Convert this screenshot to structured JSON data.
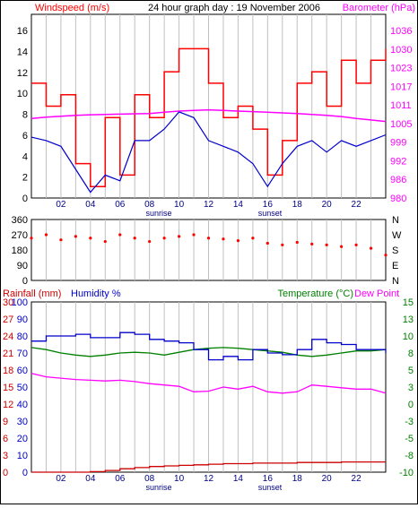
{
  "header": {
    "title": "24 hour graph day : 19 November 2006",
    "wind_label": "Windspeed (m/s)",
    "baro_label": "Barometer (hPa)"
  },
  "bottom_labels": {
    "rain_label": "Rainfall (mm)",
    "humidity_label": "Humidity %",
    "temp_label": "Temperature (°C)",
    "dew_label": "Dew Point"
  },
  "x_axis": {
    "ticks": [
      "02",
      "04",
      "06",
      "08",
      "10",
      "12",
      "14",
      "16",
      "18",
      "20",
      "22"
    ],
    "sunrise_label": "sunrise",
    "sunset_label": "sunset"
  },
  "colors": {
    "wind": "#ff0000",
    "gust": "#ff0000",
    "avg_wind": "#0000cc",
    "barometer": "#ff00ff",
    "direction": "#ff0000",
    "temperature": "#008000",
    "humidity": "#0000cc",
    "dew_point": "#ff00ff",
    "rainfall": "#cc0000",
    "grid": "#c0c0c0"
  },
  "chart_data": [
    {
      "type": "line",
      "name": "wind-barometer",
      "x": [
        0,
        1,
        2,
        3,
        4,
        5,
        6,
        7,
        8,
        9,
        10,
        11,
        12,
        13,
        14,
        15,
        16,
        17,
        18,
        19,
        20,
        21,
        22,
        23,
        24
      ],
      "y_left_ticks": [
        "0",
        "2",
        "4",
        "6",
        "8",
        "10",
        "12",
        "14",
        "16"
      ],
      "y_right_ticks": [
        "980",
        "986",
        "992",
        "999",
        "1005",
        "1011",
        "1017",
        "1023",
        "1030",
        "1036"
      ],
      "ylim_left": [
        0,
        16
      ],
      "ylim_right": [
        980,
        1040
      ],
      "series": [
        {
          "name": "Windspeed (m/s)",
          "axis": "left",
          "values": [
            10,
            8,
            9,
            3,
            1,
            7,
            2,
            9,
            7,
            11,
            13,
            13,
            10,
            7,
            8,
            6,
            2,
            5,
            10,
            11,
            8,
            12,
            10,
            12,
            13
          ]
        },
        {
          "axis": "left",
          "values": [
            5.3,
            5,
            4.5,
            2.5,
            0.5,
            2,
            1.5,
            5,
            5,
            6,
            7.5,
            7,
            5,
            4.5,
            4,
            3,
            1,
            3,
            4.5,
            5,
            4,
            5,
            4.5,
            5,
            5.5
          ]
        },
        {
          "name": "Barometer (hPa)",
          "axis": "right",
          "values": [
            1006,
            1006.4,
            1006.7,
            1007,
            1007.2,
            1007.3,
            1007.4,
            1007.5,
            1007.6,
            1008,
            1008.4,
            1008.6,
            1008.8,
            1008.6,
            1008.4,
            1008.2,
            1008,
            1007.8,
            1007.6,
            1007.3,
            1007,
            1006.6,
            1006,
            1005.5,
            1005
          ]
        }
      ]
    },
    {
      "type": "scatter",
      "name": "wind-direction",
      "x": [
        0,
        1,
        2,
        3,
        4,
        5,
        6,
        7,
        8,
        9,
        10,
        11,
        12,
        13,
        14,
        15,
        16,
        17,
        18,
        19,
        20,
        21,
        22,
        23,
        24
      ],
      "y_left_ticks": [
        "0",
        "90",
        "180",
        "270",
        "360"
      ],
      "y_right_ticks": [
        "N",
        "E",
        "S",
        "W",
        "N"
      ],
      "ylim": [
        0,
        360
      ],
      "series": [
        {
          "values": [
            250,
            270,
            240,
            260,
            250,
            230,
            270,
            250,
            230,
            250,
            260,
            270,
            250,
            245,
            235,
            250,
            220,
            210,
            225,
            215,
            210,
            200,
            210,
            190,
            150
          ]
        }
      ]
    },
    {
      "type": "line",
      "name": "temp-humidity-rain",
      "x": [
        0,
        1,
        2,
        3,
        4,
        5,
        6,
        7,
        8,
        9,
        10,
        11,
        12,
        13,
        14,
        15,
        16,
        17,
        18,
        19,
        20,
        21,
        22,
        23,
        24
      ],
      "y_rain_ticks": [
        "0",
        "3",
        "6",
        "9",
        "12",
        "15",
        "18",
        "21",
        "24",
        "27",
        "30"
      ],
      "y_humidity_ticks": [
        "0",
        "10",
        "20",
        "30",
        "40",
        "50",
        "60",
        "70",
        "80",
        "90",
        "100"
      ],
      "y_right_ticks": [
        "-10",
        "-8",
        "-5",
        "-3",
        "0",
        "3",
        "5",
        "8",
        "10",
        "13",
        "15"
      ],
      "ylim_rain": [
        0,
        30
      ],
      "ylim_temp": [
        -10,
        15
      ],
      "series": [
        {
          "name": "Temperature (°C)",
          "axis": "right",
          "values": [
            8.3,
            8,
            7.5,
            7.2,
            7,
            7.2,
            7.5,
            7.6,
            7.5,
            7.2,
            7.6,
            8,
            8.2,
            8.3,
            8.2,
            8,
            7.8,
            7.6,
            7.2,
            7,
            7.2,
            7.5,
            7.8,
            7.8,
            8
          ]
        },
        {
          "name": "Humidity %",
          "axis": "humidity",
          "values": [
            77,
            80,
            80,
            81,
            79,
            79,
            82,
            81,
            78,
            77,
            76,
            72,
            66,
            68,
            66,
            72,
            70,
            69,
            72,
            78,
            76,
            75,
            72,
            72,
            70
          ]
        },
        {
          "name": "Dew Point",
          "axis": "right",
          "values": [
            4.5,
            4,
            3.8,
            3.6,
            3.5,
            3.4,
            3.5,
            3.3,
            3,
            2.8,
            2.6,
            1.8,
            1.9,
            2.5,
            2.2,
            2.6,
            1.8,
            1.6,
            1.8,
            2.8,
            2.6,
            2.4,
            2.2,
            2.2,
            1.6
          ]
        },
        {
          "name": "Rainfall (mm)",
          "axis": "rain",
          "values": [
            0,
            0,
            0,
            0,
            0.1,
            0.3,
            0.6,
            0.8,
            1.0,
            1.1,
            1.2,
            1.3,
            1.4,
            1.5,
            1.5,
            1.6,
            1.6,
            1.6,
            1.7,
            1.7,
            1.7,
            1.8,
            1.8,
            1.8,
            1.8
          ]
        }
      ]
    }
  ]
}
